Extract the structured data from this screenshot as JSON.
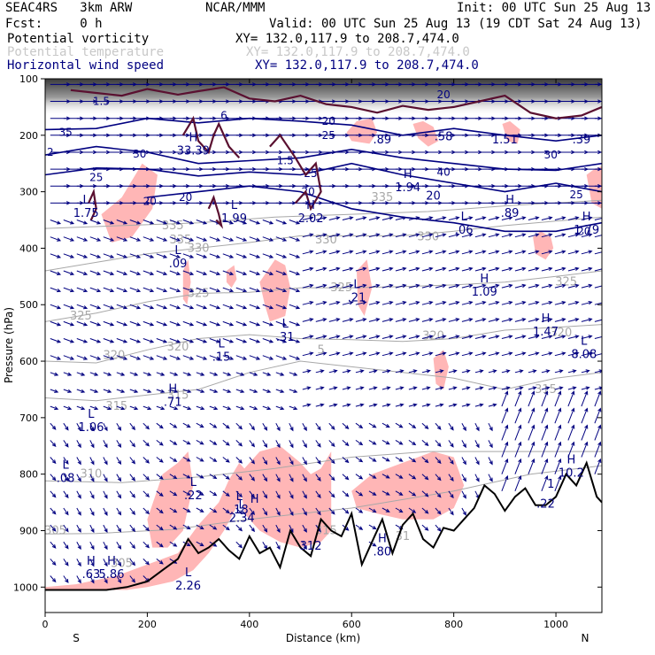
{
  "header": {
    "model": "SEAC4RS   3km ARW",
    "org": "NCAR/MMM",
    "init": "Init: 00 UTC Sun 25 Aug 13",
    "fcst": "Fcst:     0 h",
    "valid": "Valid: 00 UTC Sun 25 Aug 13 (19 CDT Sat 24 Aug 13)"
  },
  "legend": [
    {
      "label": "Potential vorticity",
      "xy": "XY= 132.0,117.9 to 208.7,474.0",
      "color": "#000000"
    },
    {
      "label": "Potential temperature",
      "xy": "XY= 132.0,117.9 to 208.7,474.0",
      "color": "#c8c8c8"
    },
    {
      "label": "Horizontal wind speed",
      "xy": "XY= 132.0,117.9 to 208.7,474.0",
      "color": "#000080"
    }
  ],
  "chart_data": {
    "type": "cross-section",
    "xlabel": "Distance (km)",
    "ylabel": "Pressure (hPa)",
    "xlim": [
      0,
      1090
    ],
    "ylim": [
      1045,
      100
    ],
    "x_ticks": [
      0,
      200,
      400,
      600,
      800,
      1000
    ],
    "y_ticks": [
      100,
      200,
      300,
      400,
      500,
      600,
      700,
      800,
      900,
      1000
    ],
    "end_labels": {
      "left": "S",
      "right": "N"
    },
    "colors": {
      "pv_shading": "#ffb6b6",
      "theta": "#a8a8a8",
      "wind_speed": "#000080",
      "pv_contour": "#5a1030",
      "vector": "#000080",
      "terrain": "#000000",
      "hl_label": "#000080"
    },
    "theta_contours": [
      {
        "value": "305",
        "x": [
          0,
          100,
          250,
          400,
          600,
          800,
          950,
          1090
        ],
        "p": [
          906,
          905,
          898,
          880,
          860,
          830,
          800,
          785
        ],
        "label_x": 20,
        "label_p": 900
      },
      {
        "value": "310",
        "x": [
          0,
          150,
          300,
          450,
          600,
          750,
          900,
          1090
        ],
        "p": [
          812,
          815,
          805,
          790,
          770,
          760,
          760,
          760
        ],
        "label_x": 90,
        "label_p": 800
      },
      {
        "value": "315",
        "x": [
          0,
          100,
          200,
          300,
          400,
          500,
          600,
          700,
          800,
          900,
          1000,
          1090
        ],
        "p": [
          665,
          670,
          660,
          650,
          620,
          600,
          610,
          620,
          630,
          650,
          630,
          620
        ],
        "label_x": 140,
        "label_p": 680
      },
      {
        "value": "320",
        "x": [
          0,
          100,
          200,
          300,
          400,
          500,
          600,
          700,
          800,
          900,
          1000,
          1090
        ],
        "p": [
          600,
          603,
          580,
          560,
          553,
          560,
          562,
          565,
          560,
          545,
          540,
          535
        ],
        "label_x": 135,
        "label_p": 590
      },
      {
        "value": "325",
        "x": [
          0,
          100,
          200,
          300,
          400,
          500,
          600,
          700,
          800,
          900,
          1000,
          1090
        ],
        "p": [
          530,
          515,
          495,
          480,
          478,
          470,
          470,
          468,
          465,
          460,
          450,
          440
        ],
        "label_x": 70,
        "label_p": 520
      },
      {
        "value": "330",
        "x": [
          0,
          100,
          200,
          300,
          400,
          500,
          600,
          700,
          800,
          900,
          1000,
          1090
        ],
        "p": [
          440,
          425,
          410,
          400,
          390,
          378,
          378,
          378,
          370,
          360,
          352,
          345
        ],
        "label_x": 550,
        "label_p": 385
      },
      {
        "value": "335",
        "x": [
          0,
          150,
          300,
          450,
          600,
          750,
          900,
          1090
        ],
        "p": [
          365,
          360,
          355,
          345,
          340,
          335,
          325,
          315
        ],
        "label_x": 660,
        "label_p": 310
      }
    ],
    "theta_labels": [
      {
        "text": "320",
        "x": 1010,
        "p": 550
      },
      {
        "value": "",
        "text": "325",
        "x": 1020,
        "p": 460
      },
      {
        "text": "325",
        "x": 300,
        "p": 480
      },
      {
        "text": "325",
        "x": 580,
        "p": 470
      },
      {
        "text": "320",
        "x": 260,
        "p": 575
      },
      {
        "text": "315",
        "x": 260,
        "p": 660
      },
      {
        "text": "315",
        "x": 980,
        "p": 650
      },
      {
        "text": "320",
        "x": 760,
        "p": 555
      },
      {
        "text": "315",
        "x": 550,
        "p": 900
      },
      {
        "text": "31",
        "x": 700,
        "p": 910
      },
      {
        "text": "335",
        "x": 265,
        "p": 385
      },
      {
        "text": "330",
        "x": 300,
        "p": 400
      },
      {
        "text": "335",
        "x": 250,
        "p": 360
      },
      {
        "text": "330",
        "x": 750,
        "p": 380
      },
      {
        "text": "305",
        "x": 150,
        "p": 958
      },
      {
        "text": "5",
        "x": 540,
        "p": 580
      }
    ],
    "wind_contours": [
      {
        "value": "35",
        "x": [
          0,
          100,
          200,
          300,
          400,
          500,
          600,
          700,
          800,
          900,
          1000,
          1090
        ],
        "p": [
          190,
          188,
          170,
          178,
          170,
          175,
          182,
          200,
          188,
          200,
          210,
          200
        ]
      },
      {
        "value": "30",
        "x": [
          0,
          100,
          200,
          300,
          400,
          500,
          600,
          700,
          800,
          900,
          1000,
          1090
        ],
        "p": [
          235,
          220,
          230,
          250,
          245,
          240,
          225,
          240,
          250,
          260,
          262,
          250
        ]
      },
      {
        "value": "25",
        "x": [
          0,
          100,
          200,
          300,
          400,
          500,
          600,
          700,
          800,
          900,
          1000,
          1090
        ],
        "p": [
          270,
          258,
          260,
          272,
          265,
          270,
          250,
          270,
          285,
          300,
          285,
          300
        ]
      },
      {
        "value": "20",
        "x": [
          200,
          300,
          400,
          500,
          600,
          700,
          800,
          900,
          1000,
          1090
        ],
        "p": [
          310,
          300,
          290,
          300,
          330,
          345,
          355,
          370,
          370,
          355
        ]
      }
    ],
    "wind_labels": [
      {
        "text": "1.5",
        "x": 110,
        "p": 140
      },
      {
        "text": "35",
        "x": 40,
        "p": 195
      },
      {
        "text": "2",
        "x": 10,
        "p": 230
      },
      {
        "text": "30",
        "x": 185,
        "p": 233
      },
      {
        "text": "25",
        "x": 100,
        "p": 275
      },
      {
        "text": "20",
        "x": 205,
        "p": 317
      },
      {
        "text": "20",
        "x": 275,
        "p": 310
      },
      {
        "text": "20",
        "x": 515,
        "p": 300
      },
      {
        "text": "25",
        "x": 520,
        "p": 268
      },
      {
        "text": "20",
        "x": 555,
        "p": 175
      },
      {
        "text": "25",
        "x": 555,
        "p": 200
      },
      {
        "text": "40",
        "x": 780,
        "p": 265
      },
      {
        "text": "30",
        "x": 990,
        "p": 235
      },
      {
        "text": "25",
        "x": 1040,
        "p": 305
      },
      {
        "text": "20",
        "x": 1055,
        "p": 370
      },
      {
        "text": "20",
        "x": 780,
        "p": 128
      },
      {
        "text": "6",
        "x": 350,
        "p": 165
      },
      {
        "text": "1.5",
        "x": 470,
        "p": 245
      }
    ],
    "pv_regions": [
      {
        "x": [
          0,
          60,
          140,
          200,
          260,
          300,
          340,
          360,
          380,
          400,
          380,
          350,
          320,
          290,
          250,
          200,
          160,
          120,
          80,
          40,
          0
        ],
        "p": [
          1000,
          995,
          980,
          960,
          940,
          890,
          850,
          810,
          780,
          800,
          850,
          900,
          940,
          970,
          990,
          1000,
          1005,
          1005,
          1005,
          1005,
          1005
        ]
      },
      {
        "x": [
          200,
          230,
          260,
          280,
          290,
          270,
          240,
          210
        ],
        "p": [
          880,
          800,
          780,
          760,
          820,
          900,
          930,
          930
        ]
      },
      {
        "x": [
          380,
          420,
          460,
          500,
          520,
          540,
          560,
          560,
          540,
          500,
          460,
          420,
          390
        ],
        "p": [
          800,
          760,
          750,
          780,
          800,
          790,
          760,
          900,
          920,
          930,
          920,
          900,
          870
        ]
      },
      {
        "x": [
          600,
          640,
          700,
          760,
          800,
          820,
          800,
          760,
          700,
          650,
          610
        ],
        "p": [
          830,
          800,
          780,
          760,
          770,
          820,
          860,
          880,
          880,
          870,
          860
        ]
      },
      {
        "x": [
          110,
          150,
          190,
          220,
          210,
          170,
          130
        ],
        "p": [
          340,
          310,
          250,
          270,
          330,
          380,
          390
        ]
      },
      {
        "x": [
          420,
          450,
          470,
          480,
          470,
          440,
          430
        ],
        "p": [
          460,
          420,
          430,
          470,
          520,
          530,
          500
        ]
      },
      {
        "x": [
          955,
          970,
          990,
          995,
          980,
          960
        ],
        "p": [
          380,
          370,
          380,
          400,
          420,
          410
        ]
      },
      {
        "x": [
          270,
          280,
          285,
          278,
          270
        ],
        "p": [
          440,
          420,
          460,
          500,
          490
        ]
      },
      {
        "x": [
          590,
          610,
          640,
          650,
          635,
          600
        ],
        "p": [
          195,
          175,
          170,
          195,
          215,
          210
        ]
      },
      {
        "x": [
          720,
          740,
          760,
          770,
          750,
          730
        ],
        "p": [
          180,
          175,
          185,
          210,
          220,
          205
        ]
      },
      {
        "x": [
          895,
          910,
          930,
          925,
          905
        ],
        "p": [
          180,
          175,
          190,
          215,
          210
        ]
      },
      {
        "x": [
          1060,
          1075,
          1090,
          1090,
          1070
        ],
        "p": [
          270,
          260,
          255,
          330,
          320
        ]
      },
      {
        "x": [
          760,
          780,
          790,
          780,
          765
        ],
        "p": [
          595,
          580,
          610,
          650,
          640
        ]
      },
      {
        "x": [
          610,
          630,
          640,
          625,
          612
        ],
        "p": [
          440,
          420,
          470,
          520,
          500
        ]
      },
      {
        "x": [
          355,
          370,
          375,
          365,
          355
        ],
        "p": [
          440,
          430,
          455,
          470,
          460
        ]
      }
    ],
    "pv_contours": [
      {
        "x": [
          50,
          100,
          150,
          200,
          260,
          300,
          350,
          400,
          450,
          500,
          550,
          600,
          650,
          700,
          750,
          800,
          850,
          900,
          950,
          1000,
          1050,
          1090
        ],
        "p": [
          120,
          125,
          130,
          118,
          128,
          122,
          115,
          135,
          140,
          130,
          145,
          150,
          160,
          148,
          155,
          150,
          140,
          130,
          160,
          170,
          165,
          150
        ]
      },
      {
        "x": [
          270,
          290,
          300,
          320,
          330,
          340,
          360,
          380
        ],
        "p": [
          200,
          170,
          210,
          230,
          200,
          180,
          220,
          240
        ]
      },
      {
        "x": [
          440,
          460,
          490,
          510,
          530,
          540,
          520,
          510,
          490
        ],
        "p": [
          220,
          200,
          240,
          270,
          250,
          300,
          330,
          300,
          320
        ]
      },
      {
        "x": [
          320,
          330,
          340,
          345,
          335
        ],
        "p": [
          330,
          310,
          340,
          360,
          350
        ]
      },
      {
        "x": [
          85,
          95,
          100,
          90
        ],
        "p": [
          320,
          300,
          330,
          350
        ]
      }
    ],
    "terrain": {
      "x": [
        0,
        60,
        120,
        160,
        200,
        230,
        260,
        280,
        300,
        320,
        340,
        360,
        380,
        400,
        420,
        440,
        460,
        480,
        500,
        520,
        540,
        560,
        580,
        600,
        620,
        640,
        660,
        680,
        700,
        720,
        740,
        760,
        780,
        800,
        820,
        840,
        860,
        880,
        900,
        920,
        940,
        960,
        980,
        1000,
        1020,
        1040,
        1060,
        1080,
        1090
      ],
      "p": [
        1005,
        1005,
        1005,
        1000,
        990,
        970,
        950,
        915,
        940,
        930,
        915,
        935,
        950,
        910,
        940,
        930,
        965,
        900,
        930,
        945,
        880,
        900,
        910,
        870,
        960,
        920,
        880,
        940,
        890,
        870,
        915,
        930,
        895,
        900,
        880,
        860,
        820,
        835,
        865,
        840,
        825,
        855,
        855,
        840,
        800,
        820,
        780,
        840,
        850
      ]
    },
    "hl_markers": [
      {
        "type": "H",
        "value": "33.39",
        "x": 290,
        "p": 220
      },
      {
        "type": "L",
        "value": "1.75",
        "x": 80,
        "p": 330
      },
      {
        "type": "L",
        "value": "1.99",
        "x": 370,
        "p": 340
      },
      {
        "type": "H",
        "value": "2.02",
        "x": 520,
        "p": 340
      },
      {
        "type": "H",
        "value": "1.94",
        "x": 710,
        "p": 285
      },
      {
        "type": "",
        "value": "20",
        "x": 760,
        "p": 300
      },
      {
        "type": "H",
        "value": ".89",
        "x": 910,
        "p": 330
      },
      {
        "type": "L",
        "value": ".06",
        "x": 820,
        "p": 360
      },
      {
        "type": "H",
        "value": "1.79",
        "x": 1060,
        "p": 360
      },
      {
        "type": "L",
        "value": ".09",
        "x": 260,
        "p": 420
      },
      {
        "type": "L",
        "value": ".21",
        "x": 610,
        "p": 480
      },
      {
        "type": "H",
        "value": "1.09",
        "x": 860,
        "p": 470
      },
      {
        "type": "H",
        "value": "1.47",
        "x": 980,
        "p": 540
      },
      {
        "type": "L",
        "value": ".31",
        "x": 470,
        "p": 550
      },
      {
        "type": "L",
        "value": ".15",
        "x": 345,
        "p": 585
      },
      {
        "type": "L",
        "value": "8.08",
        "x": 1055,
        "p": 580
      },
      {
        "type": "H",
        "value": ".71",
        "x": 250,
        "p": 665
      },
      {
        "type": "L",
        "value": "1.06",
        "x": 90,
        "p": 710
      },
      {
        "type": "L",
        "value": ".08",
        "x": 40,
        "p": 800
      },
      {
        "type": "L",
        "value": ".22",
        "x": 290,
        "p": 830
      },
      {
        "type": "H",
        "value": "10.2",
        "x": 1030,
        "p": 790
      },
      {
        "type": "",
        "value": ".22",
        "x": 980,
        "p": 845
      },
      {
        "type": "",
        "value": "1",
        "x": 990,
        "p": 810
      },
      {
        "type": "L",
        "value": "2.34",
        "x": 385,
        "p": 870
      },
      {
        "type": "H",
        "value": "",
        "x": 410,
        "p": 860
      },
      {
        "type": "L",
        "value": ".18",
        "x": 380,
        "p": 855
      },
      {
        "type": "H",
        "value": ".80",
        "x": 660,
        "p": 930
      },
      {
        "type": "H",
        "value": ".63",
        "x": 90,
        "p": 970
      },
      {
        "type": "H",
        "value": "5.86",
        "x": 130,
        "p": 970
      },
      {
        "type": "L",
        "value": "2.26",
        "x": 280,
        "p": 990
      },
      {
        "type": "",
        "value": "312",
        "x": 520,
        "p": 920
      },
      {
        "type": "",
        "value": ".58",
        "x": 780,
        "p": 195
      },
      {
        "type": "",
        "value": ".39",
        "x": 1050,
        "p": 200
      },
      {
        "type": "",
        "value": "1.51",
        "x": 900,
        "p": 200
      },
      {
        "type": "",
        "value": ".89",
        "x": 660,
        "p": 200
      }
    ]
  }
}
